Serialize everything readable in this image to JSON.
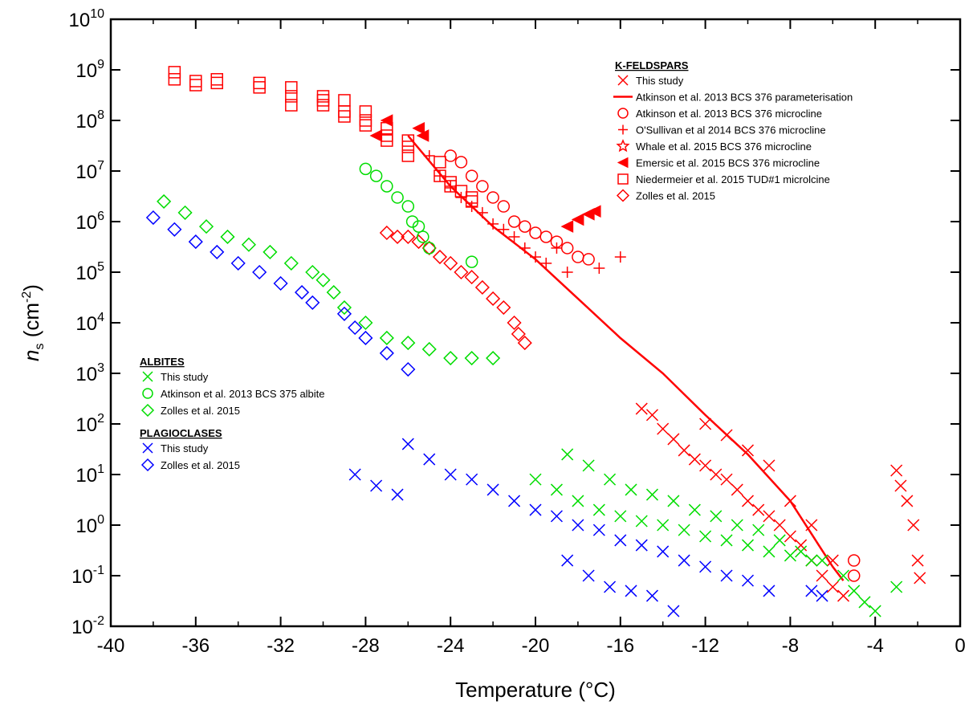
{
  "chart_data": {
    "type": "scatter",
    "title": "",
    "xlabel": "Temperature (°C)",
    "ylabel_main": "n",
    "ylabel_sub": "s",
    "ylabel_unit_pre": " (cm",
    "ylabel_unit_exp": "-2",
    "ylabel_unit_post": ")",
    "xlim": [
      -40,
      0
    ],
    "ylim": [
      0.01,
      10000000000
    ],
    "yscale": "log",
    "x_ticks": [
      -40,
      -36,
      -32,
      -28,
      -24,
      -20,
      -16,
      -12,
      -8,
      -4,
      0
    ],
    "y_ticks": [
      {
        "base": "10",
        "exp": "-2"
      },
      {
        "base": "10",
        "exp": "-1"
      },
      {
        "base": "10",
        "exp": "0"
      },
      {
        "base": "10",
        "exp": "1"
      },
      {
        "base": "10",
        "exp": "2"
      },
      {
        "base": "10",
        "exp": "3"
      },
      {
        "base": "10",
        "exp": "4"
      },
      {
        "base": "10",
        "exp": "5"
      },
      {
        "base": "10",
        "exp": "6"
      },
      {
        "base": "10",
        "exp": "7"
      },
      {
        "base": "10",
        "exp": "8"
      },
      {
        "base": "10",
        "exp": "9"
      },
      {
        "base": "10",
        "exp": "10"
      }
    ],
    "legend_groups": [
      {
        "heading": "K-FELDSPARS",
        "placement": "top-right",
        "entries": [
          {
            "label": "This study",
            "marker": "x",
            "color": "#ff0000"
          },
          {
            "label": "Atkinson et al. 2013 BCS 376 parameterisation",
            "marker": "line",
            "color": "#ff0000"
          },
          {
            "label": "Atkinson et al. 2013 BCS 376 microcline",
            "marker": "circle",
            "color": "#ff0000"
          },
          {
            "label": "O'Sullivan et al 2014 BCS 376 microcline",
            "marker": "plus",
            "color": "#ff0000"
          },
          {
            "label": "Whale et al. 2015 BCS 376 microcline",
            "marker": "star",
            "color": "#ff0000"
          },
          {
            "label": "Emersic et al. 2015 BCS 376 microcline",
            "marker": "triangle-left",
            "color": "#ff0000"
          },
          {
            "label": "Niedermeier et al. 2015 TUD#1 microlcine",
            "marker": "square",
            "color": "#ff0000"
          },
          {
            "label": "Zolles et al. 2015",
            "marker": "diamond",
            "color": "#ff0000"
          }
        ]
      },
      {
        "heading": "ALBITES",
        "placement": "middle-left",
        "entries": [
          {
            "label": "This study",
            "marker": "x",
            "color": "#00dd00"
          },
          {
            "label": "Atkinson et al. 2013 BCS 375 albite",
            "marker": "circle",
            "color": "#00dd00"
          },
          {
            "label": "Zolles et al. 2015",
            "marker": "diamond",
            "color": "#00dd00"
          }
        ]
      },
      {
        "heading": "PLAGIOCLASES",
        "placement": "middle-left",
        "entries": [
          {
            "label": "This study",
            "marker": "x",
            "color": "#0000ff"
          },
          {
            "label": "Zolles et al. 2015",
            "marker": "diamond",
            "color": "#0000ff"
          }
        ]
      }
    ],
    "series": [
      {
        "group": "K-FELDSPARS",
        "entry": "Atkinson et al. 2013 BCS 376 parameterisation",
        "marker": "line",
        "color": "#ff0000",
        "x": [
          -26.0,
          -24.0,
          -22.0,
          -20.0,
          -18.0,
          -16.0,
          -14.0,
          -12.0,
          -10.0,
          -8.0,
          -6.0,
          -5.5
        ],
        "y": [
          50000000,
          5000000,
          800000,
          180000,
          30000,
          5000,
          1000,
          150,
          25,
          3,
          0.15,
          0.08
        ]
      },
      {
        "group": "K-FELDSPARS",
        "entry": "Niedermeier et al. 2015 TUD#1 microlcine",
        "marker": "square",
        "color": "#ff0000",
        "x": [
          -37.0,
          -37.0,
          -36.0,
          -36.0,
          -35.0,
          -35.0,
          -33.0,
          -33.0,
          -31.5,
          -31.5,
          -31.5,
          -30.0,
          -30.0,
          -30.0,
          -29.0,
          -29.0,
          -29.0,
          -28.0,
          -28.0,
          -28.0,
          -27.0,
          -27.0,
          -27.0,
          -26.0,
          -26.0,
          -26.0,
          -24.5,
          -24.5,
          -24.0,
          -24.0,
          -23.5,
          -23.0,
          -23.0
        ],
        "y": [
          900000000,
          650000000,
          600000000,
          500000000,
          650000000,
          550000000,
          550000000,
          450000000,
          450000000,
          300000000,
          200000000,
          300000000,
          250000000,
          200000000,
          250000000,
          150000000,
          120000000,
          150000000,
          100000000,
          80000000,
          70000000,
          50000000,
          40000000,
          40000000,
          30000000,
          20000000,
          15000000,
          8000000,
          6000000,
          5000000,
          4000000,
          3000000,
          2500000
        ]
      },
      {
        "group": "K-FELDSPARS",
        "entry": "Emersic et al. 2015 BCS 376 microcline",
        "marker": "triangle-left",
        "color": "#ff0000",
        "x": [
          -27.5,
          -27.0,
          -25.5,
          -25.3,
          -18.5,
          -18.0,
          -17.5,
          -17.2
        ],
        "y": [
          50000000,
          100000000,
          70000000,
          50000000,
          800000,
          1100000,
          1400000,
          1600000
        ]
      },
      {
        "group": "K-FELDSPARS",
        "entry": "O'Sullivan et al 2014 BCS 376 microcline",
        "marker": "plus",
        "color": "#ff0000",
        "x": [
          -25.0,
          -24.5,
          -24.0,
          -23.5,
          -23.0,
          -22.5,
          -22.0,
          -21.5,
          -21.0,
          -20.5,
          -20.0,
          -19.5,
          -19.0,
          -18.5,
          -17.0,
          -16.0
        ],
        "y": [
          20000000,
          8000000,
          5000000,
          3000000,
          2000000,
          1500000,
          900000,
          700000,
          500000,
          300000,
          200000,
          150000,
          300000,
          100000,
          120000,
          200000
        ]
      },
      {
        "group": "K-FELDSPARS",
        "entry": "Atkinson et al. 2013 BCS 376 microcline",
        "marker": "circle",
        "color": "#ff0000",
        "x": [
          -24.0,
          -23.5,
          -23.0,
          -22.5,
          -22.0,
          -21.5,
          -21.0,
          -20.5,
          -20.0,
          -19.5,
          -19.0,
          -18.5,
          -18.0,
          -17.5,
          -5.0,
          -5.0
        ],
        "y": [
          20000000,
          15000000,
          8000000,
          5000000,
          3000000,
          2000000,
          1000000,
          800000,
          600000,
          500000,
          400000,
          300000,
          200000,
          180000,
          0.2,
          0.1
        ]
      },
      {
        "group": "K-FELDSPARS",
        "entry": "Zolles et al. 2015",
        "marker": "diamond",
        "color": "#ff0000",
        "x": [
          -27.0,
          -26.5,
          -26.0,
          -25.5,
          -25.0,
          -24.5,
          -24.0,
          -23.5,
          -23.0,
          -22.5,
          -22.0,
          -21.5,
          -21.0,
          -20.8,
          -20.5
        ],
        "y": [
          600000,
          500000,
          500000,
          400000,
          300000,
          200000,
          150000,
          100000,
          80000,
          50000,
          30000,
          20000,
          10000,
          6000,
          4000
        ]
      },
      {
        "group": "K-FELDSPARS",
        "entry": "This study",
        "marker": "x",
        "color": "#ff0000",
        "x": [
          -15.0,
          -14.5,
          -14.0,
          -13.5,
          -13.0,
          -12.5,
          -12.0,
          -11.5,
          -11.0,
          -10.5,
          -10.0,
          -9.5,
          -9.0,
          -8.5,
          -8.0,
          -7.5,
          -7.0,
          -6.5,
          -6.0,
          -5.5,
          -12.0,
          -11.0,
          -10.0,
          -9.0,
          -8.0,
          -7.0,
          -6.0,
          -3.0,
          -2.8,
          -2.5,
          -2.2,
          -2.0,
          -1.9
        ],
        "y": [
          200,
          150,
          80,
          50,
          30,
          20,
          15,
          10,
          8,
          5,
          3,
          2,
          1.5,
          1,
          0.6,
          0.4,
          0.2,
          0.1,
          0.06,
          0.04,
          100,
          60,
          30,
          15,
          3,
          1,
          0.2,
          12,
          6,
          3,
          1,
          0.2,
          0.09
        ]
      },
      {
        "group": "ALBITES",
        "entry": "Atkinson et al. 2013 BCS 375 albite",
        "marker": "circle",
        "color": "#00dd00",
        "x": [
          -28.0,
          -27.5,
          -27.0,
          -26.5,
          -26.0,
          -25.8,
          -25.5,
          -25.3,
          -25.0,
          -23.0
        ],
        "y": [
          11000000,
          8000000,
          5000000,
          3000000,
          2000000,
          1000000,
          800000,
          500000,
          300000,
          160000
        ]
      },
      {
        "group": "ALBITES",
        "entry": "Zolles et al. 2015",
        "marker": "diamond",
        "color": "#00dd00",
        "x": [
          -37.5,
          -36.5,
          -35.5,
          -34.5,
          -33.5,
          -32.5,
          -31.5,
          -30.5,
          -30.0,
          -29.5,
          -29.0,
          -28.0,
          -27.0,
          -26.0,
          -25.0,
          -24.0,
          -23.0,
          -22.0
        ],
        "y": [
          2500000,
          1500000,
          800000,
          500000,
          350000,
          250000,
          150000,
          100000,
          70000,
          40000,
          20000,
          10000,
          5000,
          4000,
          3000,
          2000,
          2000,
          2000
        ]
      },
      {
        "group": "ALBITES",
        "entry": "This study",
        "marker": "x",
        "color": "#00dd00",
        "x": [
          -20.0,
          -19.0,
          -18.0,
          -17.0,
          -16.0,
          -15.0,
          -14.0,
          -13.0,
          -12.0,
          -11.0,
          -10.0,
          -9.0,
          -8.0,
          -7.0,
          -18.5,
          -17.5,
          -16.5,
          -15.5,
          -14.5,
          -13.5,
          -12.5,
          -11.5,
          -10.5,
          -9.5,
          -8.5,
          -7.5,
          -6.5,
          -5.5,
          -5.0,
          -4.5,
          -4.0,
          -3.0
        ],
        "y": [
          8,
          5,
          3,
          2,
          1.5,
          1.2,
          1,
          0.8,
          0.6,
          0.5,
          0.4,
          0.3,
          0.25,
          0.2,
          25,
          15,
          8,
          5,
          4,
          3,
          2,
          1.5,
          1,
          0.8,
          0.5,
          0.3,
          0.2,
          0.1,
          0.05,
          0.03,
          0.02,
          0.06
        ]
      },
      {
        "group": "PLAGIOCLASES",
        "entry": "Zolles et al. 2015",
        "marker": "diamond",
        "color": "#0000ff",
        "x": [
          -38.0,
          -37.0,
          -36.0,
          -35.0,
          -34.0,
          -33.0,
          -32.0,
          -31.0,
          -30.5,
          -29.0,
          -28.5,
          -28.0,
          -27.0,
          -26.0
        ],
        "y": [
          1200000,
          700000,
          400000,
          250000,
          150000,
          100000,
          60000,
          40000,
          25000,
          15000,
          8000,
          5000,
          2500,
          1200
        ]
      },
      {
        "group": "PLAGIOCLASES",
        "entry": "This study",
        "marker": "x",
        "color": "#0000ff",
        "x": [
          -28.5,
          -27.5,
          -26.5,
          -26.0,
          -25.0,
          -24.0,
          -23.0,
          -22.0,
          -21.0,
          -20.0,
          -19.0,
          -18.0,
          -17.0,
          -16.0,
          -15.0,
          -14.0,
          -13.0,
          -12.0,
          -11.0,
          -10.0,
          -9.0,
          -7.0,
          -6.5,
          -18.5,
          -17.5,
          -16.5,
          -15.5,
          -14.5,
          -13.5
        ],
        "y": [
          10,
          6,
          4,
          40,
          20,
          10,
          8,
          5,
          3,
          2,
          1.5,
          1,
          0.8,
          0.5,
          0.4,
          0.3,
          0.2,
          0.15,
          0.1,
          0.08,
          0.05,
          0.05,
          0.04,
          0.2,
          0.1,
          0.06,
          0.05,
          0.04,
          0.02
        ]
      }
    ]
  }
}
